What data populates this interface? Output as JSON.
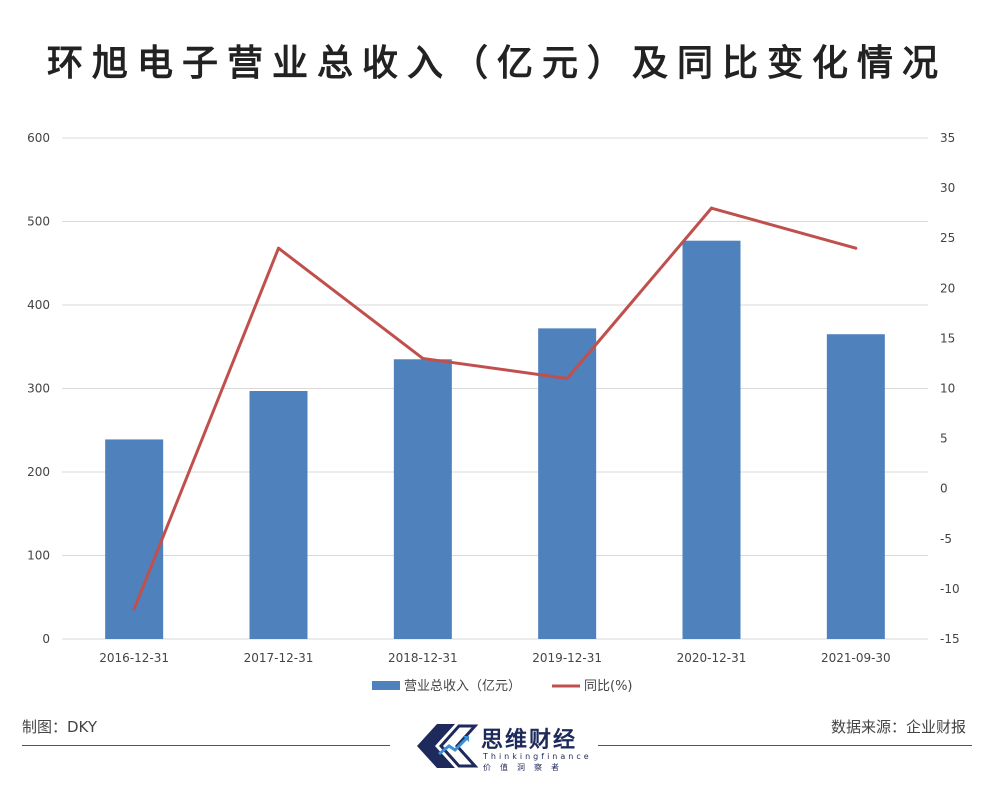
{
  "title": "环旭电子营业总收入（亿元）及同比变化情况",
  "chart_data": {
    "type": "bar",
    "categories": [
      "2016-12-31",
      "2017-12-31",
      "2018-12-31",
      "2019-12-31",
      "2020-12-31",
      "2021-09-30"
    ],
    "series": [
      {
        "name": "营业总收入（亿元）",
        "type": "bar",
        "axis": "left",
        "color": "#4f81bd",
        "values": [
          239,
          297,
          335,
          372,
          477,
          365
        ]
      },
      {
        "name": "同比(%)",
        "type": "line",
        "axis": "right",
        "color": "#c0504d",
        "values": [
          -12,
          24,
          13,
          11,
          28,
          24
        ]
      }
    ],
    "y_left": {
      "ylim": [
        0,
        600
      ],
      "ticks": [
        "0",
        "100",
        "200",
        "300",
        "400",
        "500",
        "600"
      ]
    },
    "y_right": {
      "ylim": [
        -15,
        35
      ],
      "ticks": [
        "-15",
        "-10",
        "-5",
        "0",
        "5",
        "10",
        "15",
        "20",
        "25",
        "30",
        "35"
      ]
    },
    "grid": true,
    "legend": "bottom"
  },
  "footer": {
    "left": "制图：DKY",
    "right": "数据来源：企业财报",
    "brand_name": "思维财经",
    "brand_en": "Thinkingfinance",
    "brand_sub": "价值洞察者"
  }
}
